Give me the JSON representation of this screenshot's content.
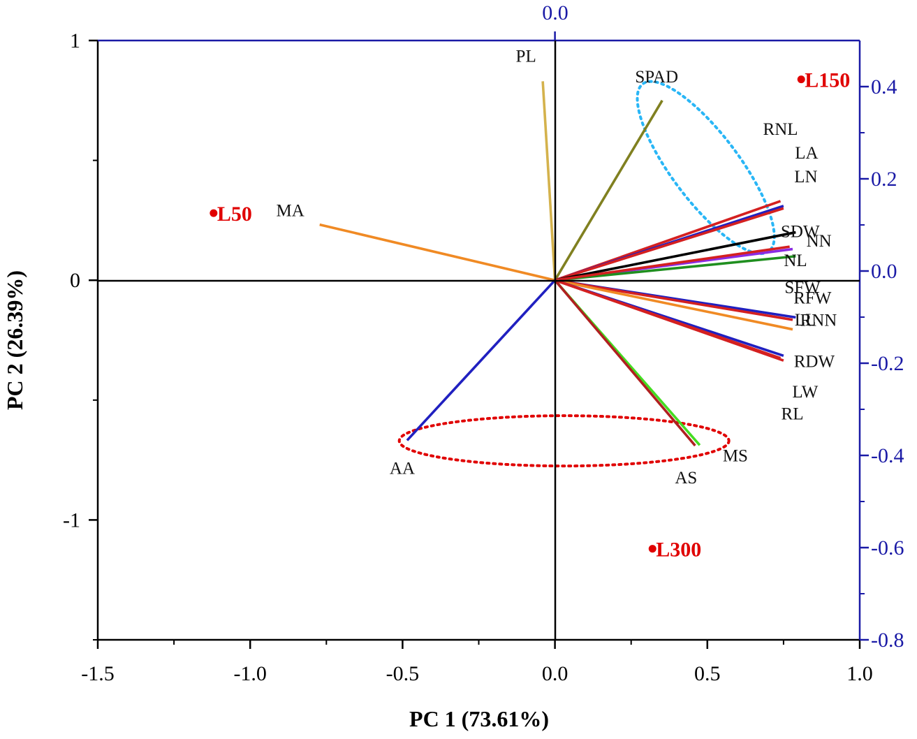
{
  "chart_data": {
    "type": "scatter",
    "subtype": "PCA biplot",
    "xlabel": "PC 1 (73.61%)",
    "ylabel": "PC 2 (26.39%)",
    "xlim": [
      -1.5,
      1.0
    ],
    "ylim_left": [
      -1.5,
      1.0
    ],
    "ylim_right": [
      -0.8,
      0.5
    ],
    "x_ticks": [
      "-1.5",
      "-1.0",
      "-0.5",
      "0.0",
      "0.5",
      "1.0"
    ],
    "y_ticks_left": [
      "1",
      "0",
      "-1"
    ],
    "y_ticks_right": [
      "0.4",
      "0.2",
      "0.0",
      "-0.2",
      "-0.4",
      "-0.6",
      "-0.8"
    ],
    "top_tick": "0.0",
    "grid": false,
    "scores": [
      {
        "name": "L150",
        "x": 0.808,
        "y": 0.838
      },
      {
        "name": "L50",
        "x": -1.12,
        "y": 0.28
      },
      {
        "name": "L300",
        "x": 0.32,
        "y": -1.12
      }
    ],
    "loadings": [
      {
        "name": "PL",
        "x": -0.04,
        "y": 0.83,
        "color": "#d4b24c"
      },
      {
        "name": "SPAD",
        "x": 0.352,
        "y": 0.75,
        "color": "#808020"
      },
      {
        "name": "MA",
        "x": -0.772,
        "y": 0.232,
        "color": "#f08a24"
      },
      {
        "name": "RNL",
        "x": 0.74,
        "y": 0.33,
        "color": "#d42020"
      },
      {
        "name": "LA",
        "x": 0.75,
        "y": 0.31,
        "color": "#2020c0"
      },
      {
        "name": "LN",
        "x": 0.75,
        "y": 0.3,
        "color": "#d42020"
      },
      {
        "name": "SFW",
        "x": 0.79,
        "y": 0.2,
        "color": "#000000"
      },
      {
        "name": "SDW",
        "x": 0.78,
        "y": 0.13,
        "color": "#8a2be2"
      },
      {
        "name": "NL",
        "x": 0.79,
        "y": 0.1,
        "color": "#1f8f1f"
      },
      {
        "name": "NN",
        "x": 0.77,
        "y": 0.14,
        "color": "#d42020"
      },
      {
        "name": "RFW",
        "x": 0.79,
        "y": -0.155,
        "color": "#2020c0"
      },
      {
        "name": "LL",
        "x": 0.78,
        "y": -0.165,
        "color": "#d42020"
      },
      {
        "name": "RNN",
        "x": 0.78,
        "y": -0.205,
        "color": "#f08a24"
      },
      {
        "name": "RDW",
        "x": 0.75,
        "y": -0.315,
        "color": "#2020c0"
      },
      {
        "name": "LW",
        "x": 0.75,
        "y": -0.335,
        "color": "#d42020"
      },
      {
        "name": "RL",
        "x": 0.74,
        "y": -0.325,
        "color": "#d42020"
      },
      {
        "name": "AA",
        "x": -0.485,
        "y": -0.668,
        "color": "#2020c0"
      },
      {
        "name": "MS",
        "x": 0.475,
        "y": -0.688,
        "color": "#44dd22"
      },
      {
        "name": "AS",
        "x": 0.46,
        "y": -0.69,
        "color": "#b02020"
      }
    ],
    "groupings": [
      {
        "color": "#29b6f6",
        "style": "dotted ellipse"
      },
      {
        "color": "#e00000",
        "style": "dotted ellipse"
      }
    ]
  }
}
